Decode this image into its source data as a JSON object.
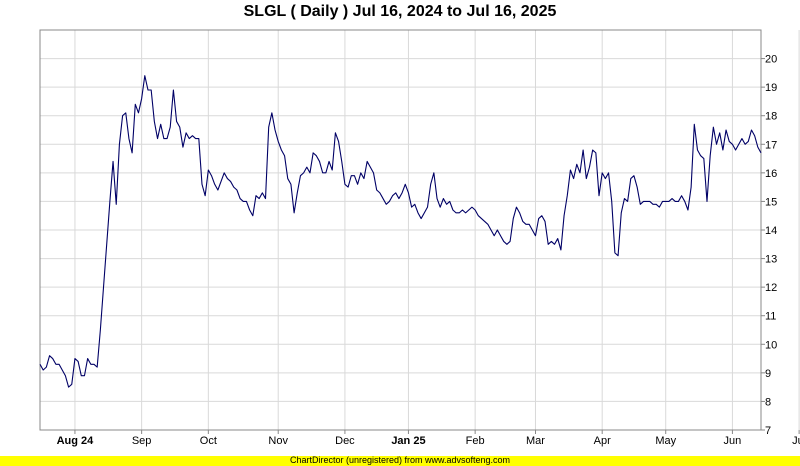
{
  "chart_data": {
    "type": "line",
    "title": "SLGL ( Daily ) Jul 16, 2024 to Jul 16, 2025",
    "xlabel": "",
    "ylabel": "",
    "ylim": [
      7,
      21
    ],
    "y_ticks": [
      7,
      8,
      9,
      10,
      11,
      12,
      13,
      14,
      15,
      16,
      17,
      18,
      19,
      20
    ],
    "x_tick_labels": [
      "Aug 24",
      "Sep",
      "Oct",
      "Nov",
      "Dec",
      "Jan 25",
      "Feb",
      "Mar",
      "Apr",
      "May",
      "Jun",
      "Jul"
    ],
    "bold_x_tick_labels": [
      "Aug 24",
      "Jan 25"
    ],
    "x_tick_index": [
      11,
      32,
      53,
      75,
      96,
      116,
      137,
      156,
      177,
      197,
      218,
      239
    ],
    "grid": true,
    "series": [
      {
        "color": "#000066",
        "values": [
          9.3,
          9.1,
          9.2,
          9.6,
          9.5,
          9.3,
          9.3,
          9.1,
          8.9,
          8.5,
          8.6,
          9.5,
          9.4,
          8.9,
          8.9,
          9.5,
          9.3,
          9.3,
          9.2,
          10.5,
          12.0,
          13.5,
          15.0,
          16.4,
          14.9,
          17.0,
          18.0,
          18.1,
          17.2,
          16.7,
          18.4,
          18.1,
          18.6,
          19.4,
          18.9,
          18.9,
          17.8,
          17.2,
          17.7,
          17.2,
          17.2,
          17.6,
          18.9,
          17.8,
          17.6,
          16.9,
          17.4,
          17.2,
          17.3,
          17.2,
          17.2,
          15.6,
          15.2,
          16.1,
          15.9,
          15.6,
          15.4,
          15.7,
          16.0,
          15.8,
          15.7,
          15.5,
          15.4,
          15.1,
          15.0,
          15.0,
          14.7,
          14.5,
          15.2,
          15.1,
          15.3,
          15.1,
          17.6,
          18.1,
          17.5,
          17.1,
          16.8,
          16.6,
          15.8,
          15.6,
          14.6,
          15.3,
          15.9,
          16.0,
          16.2,
          16.0,
          16.7,
          16.6,
          16.4,
          16.0,
          16.0,
          16.4,
          16.1,
          17.4,
          17.1,
          16.4,
          15.6,
          15.5,
          15.9,
          15.9,
          15.6,
          16.0,
          15.8,
          16.4,
          16.2,
          16.0,
          15.4,
          15.3,
          15.1,
          14.9,
          15.0,
          15.2,
          15.3,
          15.1,
          15.3,
          15.6,
          15.3,
          14.8,
          14.9,
          14.6,
          14.4,
          14.6,
          14.8,
          15.6,
          16.0,
          15.1,
          14.8,
          15.1,
          14.9,
          15.0,
          14.7,
          14.6,
          14.6,
          14.7,
          14.6,
          14.7,
          14.8,
          14.7,
          14.5,
          14.4,
          14.3,
          14.2,
          14.0,
          13.8,
          14.0,
          13.8,
          13.6,
          13.5,
          13.6,
          14.4,
          14.8,
          14.6,
          14.3,
          14.2,
          14.2,
          14.0,
          13.8,
          14.4,
          14.5,
          14.3,
          13.5,
          13.6,
          13.5,
          13.7,
          13.3,
          14.5,
          15.2,
          16.1,
          15.8,
          16.3,
          16.0,
          16.8,
          15.8,
          16.2,
          16.8,
          16.7,
          15.2,
          16.0,
          15.8,
          16.0,
          15.0,
          13.2,
          13.1,
          14.6,
          15.1,
          15.0,
          15.8,
          15.9,
          15.5,
          14.9,
          15.0,
          15.0,
          15.0,
          14.9,
          14.9,
          14.8,
          15.0,
          15.0,
          15.0,
          15.1,
          15.0,
          15.0,
          15.2,
          15.0,
          14.7,
          15.5,
          17.7,
          16.8,
          16.6,
          16.5,
          15.0,
          16.6,
          17.6,
          17.0,
          17.4,
          16.8,
          17.5,
          17.1,
          17.0,
          16.8,
          17.0,
          17.2,
          17.0,
          17.1,
          17.5,
          17.3,
          16.9,
          16.7
        ]
      }
    ]
  },
  "footer": {
    "text": "ChartDirector (unregistered) from www.advsofteng.com"
  },
  "colors": {
    "line": "#000066",
    "grid": "#d9d9d9",
    "plot_border": "#888888",
    "footer_bg": "#ffff00"
  }
}
